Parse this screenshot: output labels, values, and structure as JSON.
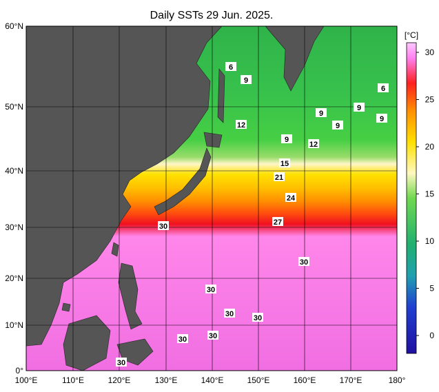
{
  "title": "Daily SSTs 29 Jun. 2025.",
  "x_axis_labels": [
    "100°E",
    "110°E",
    "120°E",
    "130°E",
    "140°E",
    "150°E",
    "160°E",
    "170°E",
    "180°"
  ],
  "y_axis_labels": [
    "60°N",
    "50°N",
    "40°N",
    "30°N",
    "20°N",
    "10°N",
    "0°"
  ],
  "colorbar": {
    "unit": "[°C]",
    "ticks": [
      "30",
      "25",
      "20",
      "15",
      "10",
      "5",
      "0"
    ]
  },
  "contour_labels": [
    "6",
    "9",
    "12",
    "6",
    "9",
    "9",
    "9",
    "9",
    "9",
    "12",
    "15",
    "21",
    "24",
    "27",
    "30",
    "30",
    "30",
    "30",
    "30",
    "30",
    "30",
    "30"
  ]
}
